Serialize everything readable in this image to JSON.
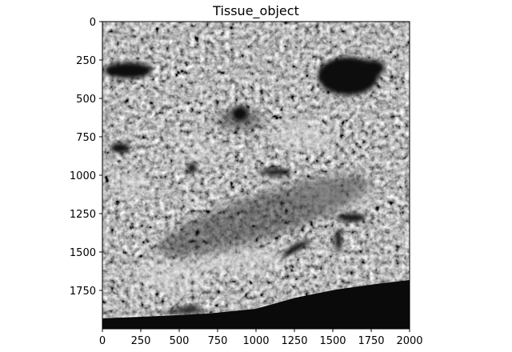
{
  "chart_data": {
    "type": "heatmap",
    "title": "Tissue_object",
    "xlabel": "",
    "ylabel": "",
    "xlim": [
      0,
      2000
    ],
    "ylim": [
      2000,
      0
    ],
    "x_ticks": [
      0,
      250,
      500,
      750,
      1000,
      1250,
      1500,
      1750,
      2000
    ],
    "y_ticks": [
      0,
      250,
      500,
      750,
      1000,
      1250,
      1500,
      1750
    ],
    "colormap": "gray",
    "grid": false,
    "legend": "none",
    "image_content": "grayscale textured microscopy image of tissue"
  }
}
